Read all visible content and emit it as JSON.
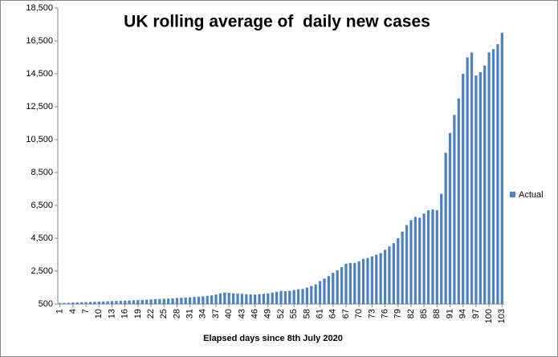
{
  "chart_data": {
    "type": "bar",
    "title": "UK rolling average of  daily new cases",
    "x_label": "Elapsed days since 8th July 2020",
    "categories": [
      "1",
      null,
      null,
      "4",
      null,
      null,
      "7",
      null,
      null,
      "10",
      null,
      null,
      "13",
      null,
      null,
      "16",
      null,
      null,
      "19",
      null,
      null,
      "22",
      null,
      null,
      "25",
      null,
      null,
      "28",
      null,
      null,
      "31",
      null,
      null,
      "34",
      null,
      null,
      "37",
      null,
      null,
      "40",
      null,
      null,
      "43",
      null,
      null,
      "46",
      null,
      null,
      "49",
      null,
      null,
      "52",
      null,
      null,
      "55",
      null,
      null,
      "58",
      null,
      null,
      "61",
      null,
      null,
      "64",
      null,
      null,
      "67",
      null,
      null,
      "70",
      null,
      null,
      "73",
      null,
      null,
      "76",
      null,
      null,
      "79",
      null,
      null,
      "82",
      null,
      null,
      "85",
      null,
      null,
      "88",
      null,
      null,
      "91",
      null,
      null,
      "94",
      null,
      null,
      "97",
      null,
      null,
      "100",
      null,
      null,
      "103"
    ],
    "series": [
      {
        "name": "Actual",
        "color": "#4f81bd",
        "values": [
          560,
          570,
          580,
          590,
          600,
          610,
          620,
          630,
          640,
          650,
          660,
          670,
          680,
          690,
          700,
          710,
          720,
          730,
          740,
          750,
          760,
          780,
          800,
          810,
          820,
          830,
          850,
          870,
          880,
          900,
          910,
          930,
          950,
          970,
          1000,
          1030,
          1080,
          1150,
          1200,
          1180,
          1150,
          1130,
          1120,
          1100,
          1090,
          1080,
          1100,
          1120,
          1150,
          1200,
          1250,
          1300,
          1280,
          1300,
          1350,
          1400,
          1420,
          1500,
          1600,
          1700,
          1900,
          2050,
          2200,
          2400,
          2550,
          2750,
          2950,
          3000,
          3000,
          3100,
          3250,
          3300,
          3400,
          3500,
          3600,
          3800,
          4000,
          4200,
          4500,
          4900,
          5300,
          5600,
          5800,
          5750,
          6000,
          6200,
          6250,
          6200,
          7200,
          9700,
          10900,
          12000,
          13000,
          14500,
          15500,
          15800,
          14400,
          14600,
          15000,
          15800,
          16000,
          16300,
          17000
        ]
      }
    ],
    "ylim": [
      500,
      18500
    ],
    "yticks": [
      500,
      {
        "value": 2500,
        "label": "2,500"
      },
      {
        "value": 4500,
        "label": "4,500"
      },
      {
        "value": 6500,
        "label": "6,500"
      },
      {
        "value": 8500,
        "label": "8,500"
      },
      {
        "value": 10500,
        "label": "10,500"
      },
      {
        "value": 12500,
        "label": "12,500"
      },
      {
        "value": 14500,
        "label": "14,500"
      },
      {
        "value": 16500,
        "label": "16,500"
      },
      {
        "value": 18500,
        "label": "18,500"
      }
    ],
    "grid": false,
    "legend": "right"
  }
}
